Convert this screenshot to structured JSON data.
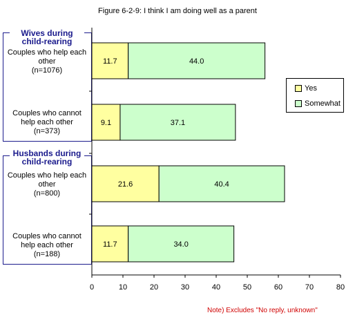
{
  "title": "Figure 6-2-9:  I think I am doing well as a parent",
  "note": "Note) Excludes \"No reply, unknown\"",
  "groups": [
    {
      "label_line1": "Wives during",
      "label_line2": "child-rearing"
    },
    {
      "label_line1": "Husbands during",
      "label_line2": "child-rearing"
    }
  ],
  "categories": [
    {
      "line1": "Couples who help each",
      "line2": "other",
      "line3": "(n=1076)"
    },
    {
      "line1": "Couples who cannot",
      "line2": "help each other",
      "line3": "(n=373)"
    },
    {
      "line1": "Couples who help each",
      "line2": "other",
      "line3": "(n=800)"
    },
    {
      "line1": "Couples who cannot",
      "line2": "help each other",
      "line3": "(n=188)"
    }
  ],
  "legend": {
    "yes": "Yes",
    "somewhat": "Somewhat"
  },
  "colors": {
    "yes": "#ffffa0",
    "somewhat": "#ccffcc",
    "group_border": "#1a1a8c",
    "note": "#d00000"
  },
  "chart_data": {
    "type": "bar",
    "orientation": "horizontal",
    "stacked": true,
    "title": "Figure 6-2-9:  I think I am doing well as a parent",
    "categories": [
      "Wives during child-rearing: Couples who help each other (n=1076)",
      "Wives during child-rearing: Couples who cannot help each other (n=373)",
      "Husbands during child-rearing: Couples who help each other (n=800)",
      "Husbands during child-rearing: Couples who cannot help each other (n=188)"
    ],
    "series": [
      {
        "name": "Yes",
        "values": [
          11.7,
          9.1,
          21.6,
          11.7
        ],
        "labels": [
          "11.7",
          "9.1",
          "21.6",
          "11.7"
        ]
      },
      {
        "name": "Somewhat",
        "values": [
          44.0,
          37.1,
          40.4,
          34.0
        ],
        "labels": [
          "44.0",
          "37.1",
          "40.4",
          "34.0"
        ]
      }
    ],
    "xlim": [
      0,
      80
    ],
    "xticks": [
      "0",
      "10",
      "20",
      "30",
      "40",
      "50",
      "60",
      "70",
      "80"
    ],
    "grid": false,
    "legend_position": "right"
  }
}
